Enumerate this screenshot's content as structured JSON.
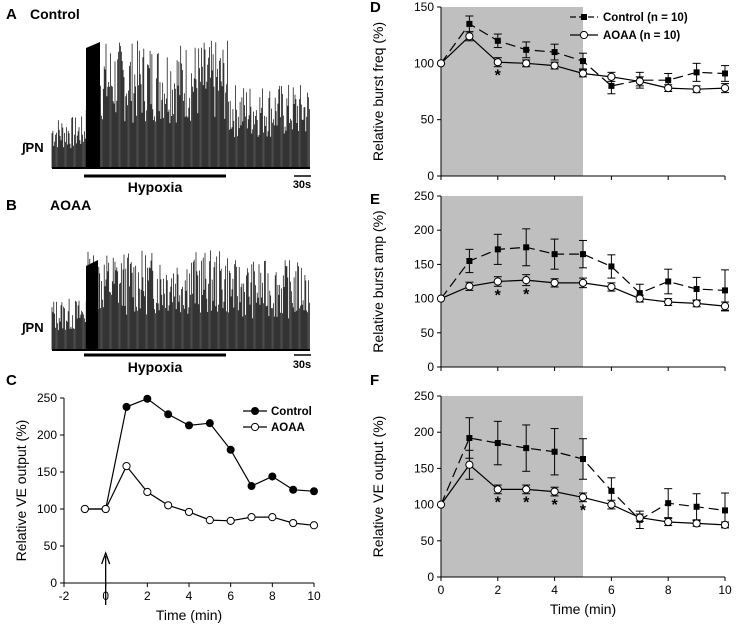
{
  "panels": {
    "A": {
      "letter": "A",
      "condition": "Control",
      "signal_label": "∫PN",
      "bar_label": "Hypoxia",
      "scale_label": "30s"
    },
    "B": {
      "letter": "B",
      "condition": "AOAA",
      "signal_label": "∫PN",
      "bar_label": "Hypoxia",
      "scale_label": "30s"
    }
  },
  "arrow_symbol": "↑",
  "star": "*",
  "chart_data": [
    {
      "id": "C",
      "letter": "C",
      "type": "line",
      "title": "",
      "xlabel": "Time (min)",
      "ylabel": "Relative VE output (%)",
      "xlim": [
        -2,
        10
      ],
      "ylim": [
        0,
        250
      ],
      "xticks": [
        -2,
        0,
        2,
        4,
        6,
        8,
        10
      ],
      "yticks": [
        0,
        50,
        100,
        150,
        200,
        250
      ],
      "annotation": "arrow at t = 0",
      "series": [
        {
          "name": "Control",
          "marker": "filled-circle",
          "x": [
            -1,
            0,
            1,
            2,
            3,
            4,
            5,
            6,
            7,
            8,
            9,
            10
          ],
          "y": [
            100,
            100,
            238,
            249,
            228,
            213,
            216,
            180,
            131,
            144,
            126,
            124
          ]
        },
        {
          "name": "AOAA",
          "marker": "open-circle",
          "x": [
            -1,
            0,
            1,
            2,
            3,
            4,
            5,
            6,
            7,
            8,
            9,
            10
          ],
          "y": [
            100,
            100,
            158,
            123,
            105,
            96,
            85,
            84,
            89,
            89,
            81,
            78
          ]
        }
      ],
      "legend": "top-right"
    },
    {
      "id": "D",
      "letter": "D",
      "type": "line",
      "title": "",
      "xlabel": "",
      "ylabel": "Relative burst freq (%)",
      "xlim": [
        0,
        10
      ],
      "ylim": [
        0,
        150
      ],
      "yticks": [
        0,
        50,
        100,
        150
      ],
      "shaded_region": [
        0,
        5
      ],
      "series": [
        {
          "name": "Control (n = 10)",
          "marker": "filled-square",
          "dash": true,
          "x": [
            0,
            1,
            2,
            3,
            4,
            5,
            6,
            7,
            8,
            9,
            10
          ],
          "y": [
            100,
            135,
            120,
            112,
            110,
            102,
            80,
            85,
            85,
            92,
            91
          ],
          "err": [
            0,
            7,
            6,
            7,
            7,
            7,
            7,
            7,
            6,
            8,
            7
          ]
        },
        {
          "name": "AOAA (n = 10)",
          "marker": "open-circle",
          "dash": false,
          "x": [
            0,
            1,
            2,
            3,
            4,
            5,
            6,
            7,
            8,
            9,
            10
          ],
          "y": [
            100,
            124,
            101,
            100,
            98,
            91,
            88,
            84,
            78,
            77,
            78
          ],
          "err": [
            0,
            4,
            4,
            3,
            3,
            3,
            4,
            4,
            3,
            3,
            4
          ]
        }
      ],
      "significance_x": [
        2
      ],
      "legend": "top-right"
    },
    {
      "id": "E",
      "letter": "E",
      "type": "line",
      "title": "",
      "xlabel": "",
      "ylabel": "Relative burst amp (%)",
      "xlim": [
        0,
        10
      ],
      "ylim": [
        0,
        250
      ],
      "yticks": [
        0,
        50,
        100,
        150,
        200,
        250
      ],
      "shaded_region": [
        0,
        5
      ],
      "series": [
        {
          "name": "Control (n = 10)",
          "marker": "filled-square",
          "dash": true,
          "x": [
            0,
            1,
            2,
            3,
            4,
            5,
            6,
            7,
            8,
            9,
            10
          ],
          "y": [
            100,
            155,
            172,
            175,
            165,
            165,
            147,
            108,
            125,
            114,
            112
          ],
          "err": [
            0,
            17,
            22,
            27,
            22,
            20,
            17,
            13,
            18,
            17,
            30
          ]
        },
        {
          "name": "AOAA (n = 10)",
          "marker": "open-circle",
          "dash": false,
          "x": [
            0,
            1,
            2,
            3,
            4,
            5,
            6,
            7,
            8,
            9,
            10
          ],
          "y": [
            100,
            118,
            125,
            127,
            123,
            123,
            117,
            100,
            95,
            93,
            89
          ],
          "err": [
            0,
            6,
            7,
            8,
            6,
            7,
            6,
            5,
            5,
            5,
            6
          ]
        }
      ],
      "significance_x": [
        2,
        3
      ]
    },
    {
      "id": "F",
      "letter": "F",
      "type": "line",
      "title": "",
      "xlabel": "Time (min)",
      "ylabel": "Relative VE output (%)",
      "xlim": [
        0,
        10
      ],
      "ylim": [
        0,
        250
      ],
      "xticks": [
        0,
        2,
        4,
        6,
        8,
        10
      ],
      "yticks": [
        0,
        50,
        100,
        150,
        200,
        250
      ],
      "shaded_region": [
        0,
        5
      ],
      "series": [
        {
          "name": "Control (n = 10)",
          "marker": "filled-square",
          "dash": true,
          "x": [
            0,
            1,
            2,
            3,
            4,
            5,
            6,
            7,
            8,
            9,
            10
          ],
          "y": [
            100,
            192,
            185,
            178,
            173,
            163,
            119,
            79,
            102,
            97,
            92
          ],
          "err": [
            0,
            28,
            30,
            32,
            32,
            28,
            18,
            12,
            20,
            18,
            24
          ]
        },
        {
          "name": "AOAA (n = 10)",
          "marker": "open-circle",
          "dash": false,
          "x": [
            0,
            1,
            2,
            3,
            4,
            5,
            6,
            7,
            8,
            9,
            10
          ],
          "y": [
            100,
            155,
            121,
            121,
            118,
            110,
            100,
            82,
            76,
            74,
            72
          ],
          "err": [
            0,
            20,
            6,
            6,
            6,
            6,
            6,
            5,
            5,
            4,
            4
          ]
        }
      ],
      "significance_x": [
        2,
        3,
        4,
        5
      ]
    }
  ]
}
